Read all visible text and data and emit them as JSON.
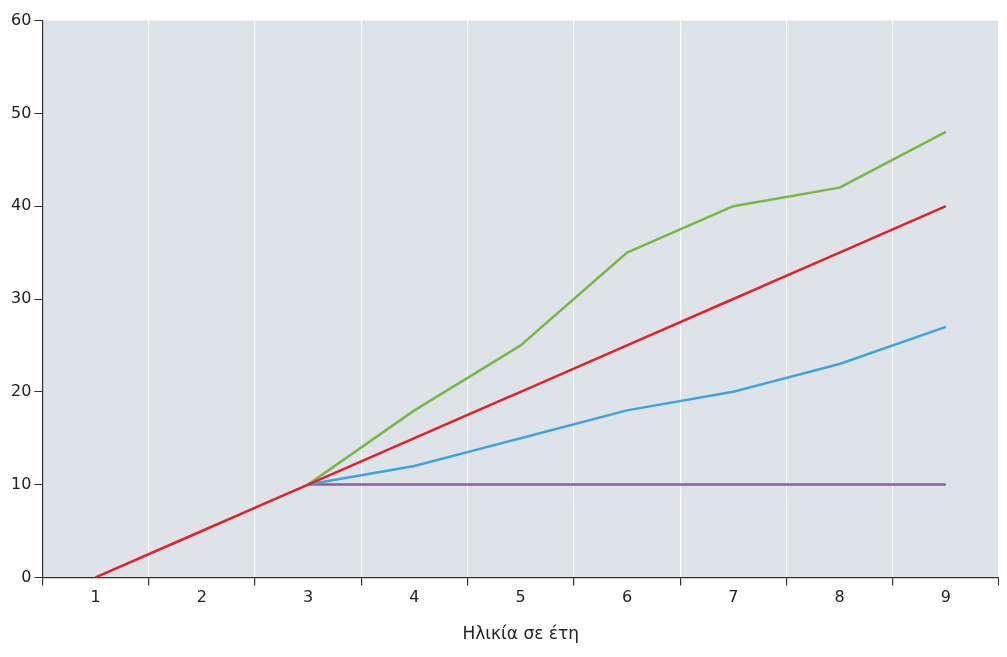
{
  "chart_data": {
    "type": "line",
    "xlabel": "Ηλικία σε έτη",
    "categories": [
      "1",
      "2",
      "3",
      "4",
      "5",
      "6",
      "7",
      "8",
      "9"
    ],
    "series": [
      {
        "color": "#e32228",
        "values": [
          0,
          5,
          10,
          15,
          20,
          25,
          30,
          35,
          40
        ]
      },
      {
        "color": "#76b942",
        "values": [
          null,
          null,
          10,
          18,
          25,
          35,
          40,
          42,
          48
        ]
      },
      {
        "color": "#3fa3dc",
        "values": [
          null,
          null,
          10,
          12,
          15,
          18,
          20,
          23,
          27
        ]
      },
      {
        "color": "#8e5ea2",
        "values": [
          null,
          null,
          10,
          10,
          10,
          10,
          10,
          10,
          10
        ]
      }
    ],
    "ylim": [
      0,
      60
    ],
    "yticks": [
      0,
      10,
      20,
      30,
      40,
      50,
      60
    ],
    "grid": "x",
    "legend": false,
    "marker": "none",
    "line_style": "solid"
  }
}
